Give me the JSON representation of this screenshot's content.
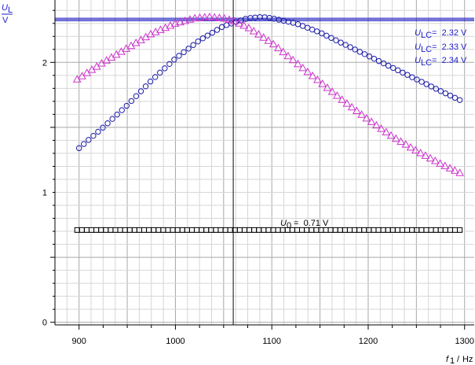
{
  "chart_data": {
    "type": "scatter",
    "y_axis_label": {
      "symbol": "U",
      "subscript": "L",
      "unit": "V"
    },
    "x_axis_label": {
      "symbol": "f",
      "subscript": "1",
      "unit": "Hz"
    },
    "xlim": [
      875,
      1310
    ],
    "ylim": [
      -0.02,
      2.48
    ],
    "x_ticks": [
      900,
      1000,
      1100,
      1200,
      1300
    ],
    "x_tick_labels": [
      "900",
      "1000",
      "1100",
      "1200",
      "1300"
    ],
    "y_ticks": [
      0,
      1,
      2
    ],
    "y_tick_labels": [
      "0",
      "1",
      "2"
    ],
    "grid": true,
    "reference_x": 1060,
    "reference_y": [
      2.32,
      2.33,
      2.34
    ],
    "annotations": [
      {
        "symbol": "U",
        "subscript": "LC",
        "text": " =  2.32 V",
        "color": "#1c1ccc"
      },
      {
        "symbol": "U",
        "subscript": "LC",
        "text": " =  2.33 V",
        "color": "#1c1ccc"
      },
      {
        "symbol": "U",
        "subscript": "LC",
        "text": " =  2.34 V",
        "color": "#1c1ccc"
      },
      {
        "symbol": "U",
        "subscript": "0",
        "text": " =  0.71 V",
        "color": "#000000"
      }
    ],
    "series": [
      {
        "marker": "circle",
        "color": "#1a1aa6",
        "x": [
          900,
          925,
          950,
          975,
          1000,
          1025,
          1050,
          1075,
          1090,
          1100,
          1125,
          1150,
          1175,
          1200,
          1225,
          1250,
          1275,
          1295
        ],
        "y": [
          1.34,
          1.5,
          1.67,
          1.86,
          2.03,
          2.17,
          2.28,
          2.34,
          2.35,
          2.34,
          2.3,
          2.23,
          2.14,
          2.05,
          1.96,
          1.87,
          1.78,
          1.71
        ]
      },
      {
        "marker": "triangle",
        "color": "#cc33cc",
        "x": [
          898,
          925,
          950,
          975,
          1000,
          1020,
          1035,
          1050,
          1060,
          1075,
          1100,
          1125,
          1150,
          1175,
          1200,
          1225,
          1250,
          1275,
          1295
        ],
        "y": [
          1.87,
          2.0,
          2.11,
          2.22,
          2.3,
          2.34,
          2.35,
          2.34,
          2.32,
          2.27,
          2.15,
          2.0,
          1.85,
          1.7,
          1.56,
          1.43,
          1.32,
          1.22,
          1.15
        ]
      },
      {
        "marker": "square",
        "color": "#000000",
        "x": [
          898,
          950,
          1000,
          1050,
          1100,
          1150,
          1200,
          1250,
          1295
        ],
        "y": [
          0.71,
          0.71,
          0.71,
          0.71,
          0.71,
          0.71,
          0.71,
          0.71,
          0.71
        ]
      }
    ]
  }
}
